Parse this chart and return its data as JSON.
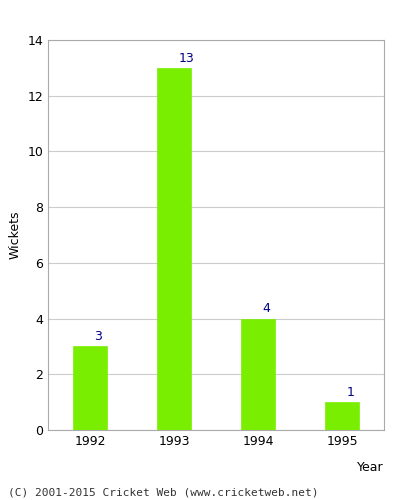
{
  "categories": [
    "1992",
    "1993",
    "1994",
    "1995"
  ],
  "values": [
    3,
    13,
    4,
    1
  ],
  "bar_color": "#7aee00",
  "bar_edgecolor": "#7aee00",
  "xlabel": "Year",
  "ylabel": "Wickets",
  "ylim": [
    0,
    14
  ],
  "yticks": [
    0,
    2,
    4,
    6,
    8,
    10,
    12,
    14
  ],
  "label_color": "#000080",
  "label_fontsize": 9,
  "axis_label_fontsize": 9,
  "tick_fontsize": 9,
  "background_color": "#ffffff",
  "grid_color": "#cccccc",
  "footer_text": "(C) 2001-2015 Cricket Web (www.cricketweb.net)",
  "footer_fontsize": 8
}
